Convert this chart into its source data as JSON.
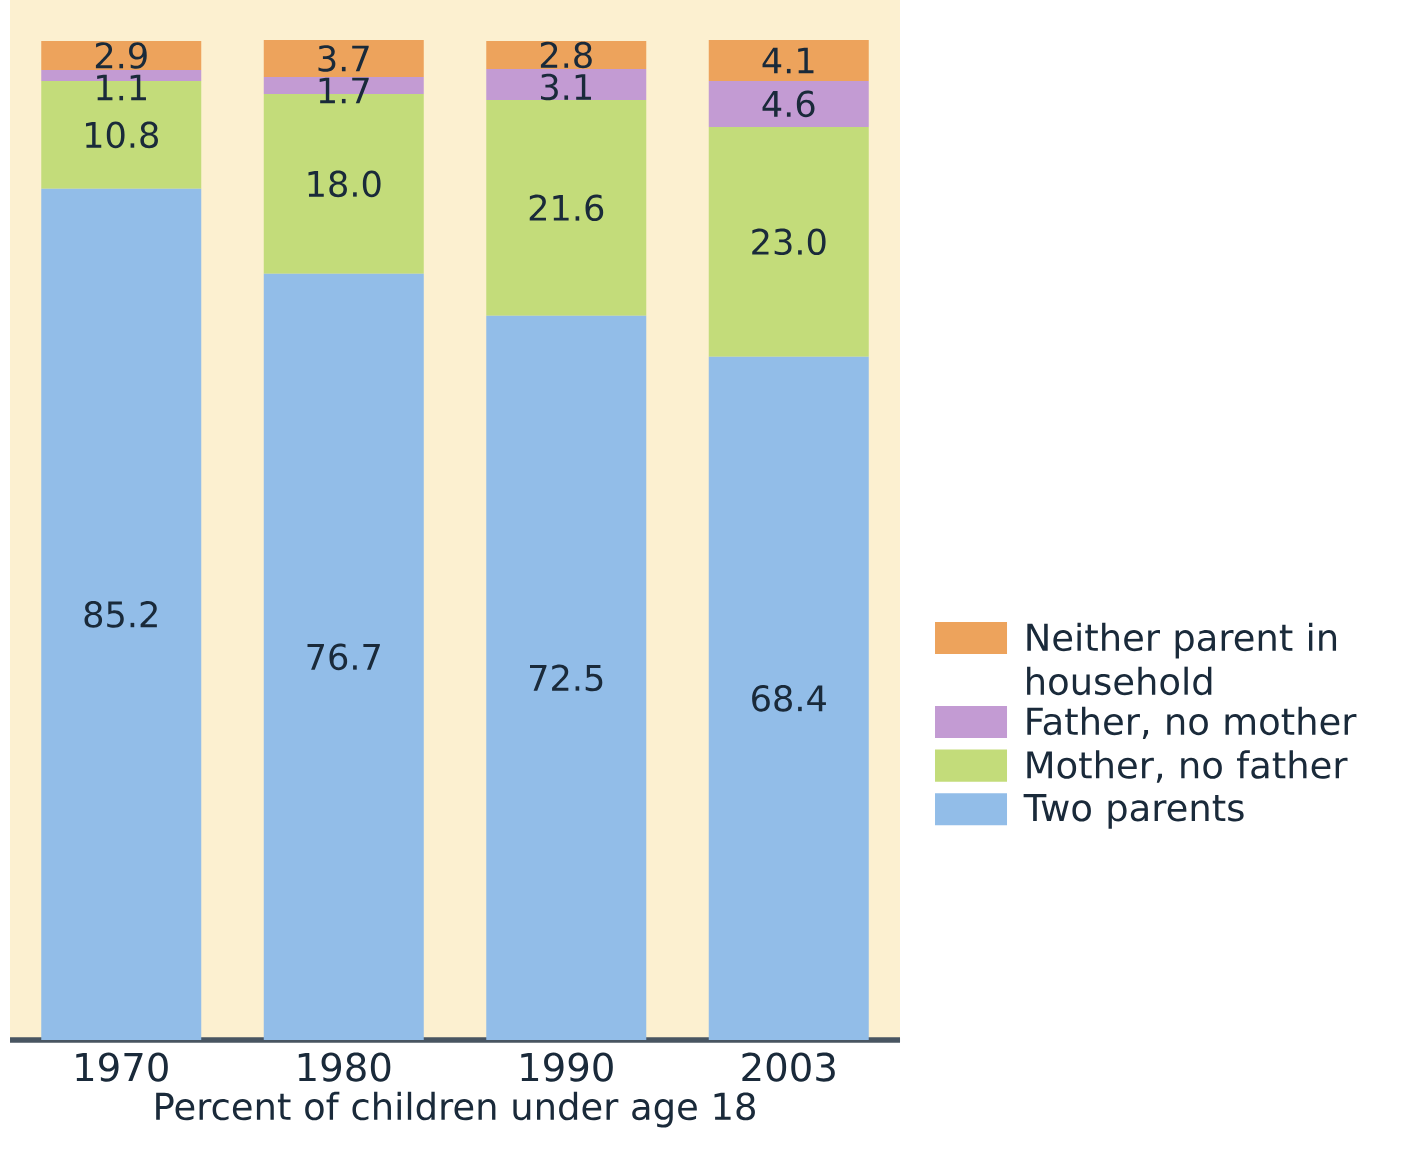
{
  "chart_data": {
    "type": "bar",
    "stacked": true,
    "xlabel": "Percent of children under age 18",
    "categories": [
      "1970",
      "1980",
      "1990",
      "2003"
    ],
    "ylim": [
      0,
      100.1
    ],
    "legend": "right",
    "series": [
      {
        "name": "Two parents",
        "color": "#92bde8",
        "values": [
          85.2,
          76.7,
          72.5,
          68.4
        ],
        "value_labels": [
          "85.2",
          "76.7",
          "72.5",
          "68.4"
        ]
      },
      {
        "name": "Mother, no father",
        "color": "#c3dc7a",
        "values": [
          10.8,
          18.0,
          21.6,
          23.0
        ],
        "value_labels": [
          "10.8",
          "18.0",
          "21.6",
          "23.0"
        ]
      },
      {
        "name": "Father, no mother",
        "color": "#c39bd3",
        "values": [
          1.1,
          1.7,
          3.1,
          4.6
        ],
        "value_labels": [
          "1.1",
          "1.7",
          "3.1",
          "4.6"
        ]
      },
      {
        "name": "Neither parent in household",
        "color": "#eda35c",
        "values": [
          2.9,
          3.7,
          2.8,
          4.1
        ],
        "value_labels": [
          "2.9",
          "3.7",
          "2.8",
          "4.1"
        ]
      }
    ]
  }
}
